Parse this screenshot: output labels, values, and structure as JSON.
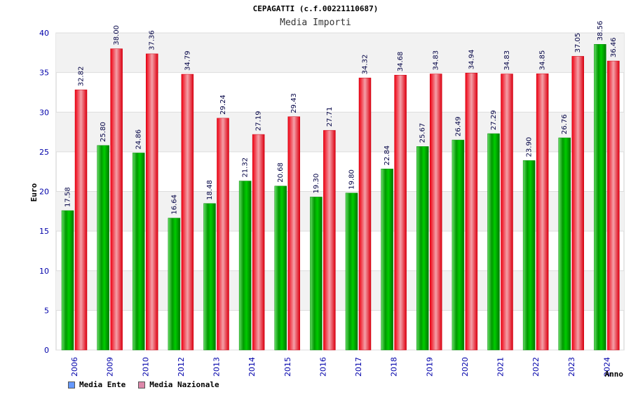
{
  "title": "CEPAGATTI (c.f.00221110687)",
  "subtitle": "Media Importi",
  "chart_data": {
    "type": "bar",
    "categories": [
      "2006",
      "2009",
      "2010",
      "2012",
      "2013",
      "2014",
      "2015",
      "2016",
      "2017",
      "2018",
      "2019",
      "2020",
      "2021",
      "2022",
      "2023",
      "2024"
    ],
    "series": [
      {
        "name": "Media Ente",
        "color": "#00aa00",
        "legend_color": "#6699ff",
        "values": [
          17.58,
          25.8,
          24.86,
          16.64,
          18.48,
          21.32,
          20.68,
          19.3,
          19.8,
          22.84,
          25.67,
          26.49,
          27.29,
          23.9,
          26.76,
          38.56
        ],
        "labels": [
          "17.58",
          "25.80",
          "24.86",
          "16.64",
          "18.48",
          "21.32",
          "20.68",
          "19.30",
          "19.80",
          "22.84",
          "25.67",
          "26.49",
          "27.29",
          "23.90",
          "26.76",
          "38.56"
        ]
      },
      {
        "name": "Media Nazionale",
        "color": "#ee1122",
        "legend_color": "#dd88aa",
        "values": [
          32.82,
          38.0,
          37.36,
          34.79,
          29.24,
          27.19,
          29.43,
          27.71,
          34.32,
          34.68,
          34.83,
          34.94,
          34.83,
          34.85,
          37.05,
          36.46
        ],
        "labels": [
          "32.82",
          "38.00",
          "37.36",
          "34.79",
          "29.24",
          "27.19",
          "29.43",
          "27.71",
          "34.32",
          "34.68",
          "34.83",
          "34.94",
          "34.83",
          "34.85",
          "37.05",
          "36.46"
        ]
      }
    ],
    "xlabel": "Anno",
    "ylabel": "Euro",
    "ylim": [
      0,
      40
    ],
    "yticks": [
      0,
      5,
      10,
      15,
      20,
      25,
      30,
      35,
      40
    ],
    "grid": true
  }
}
